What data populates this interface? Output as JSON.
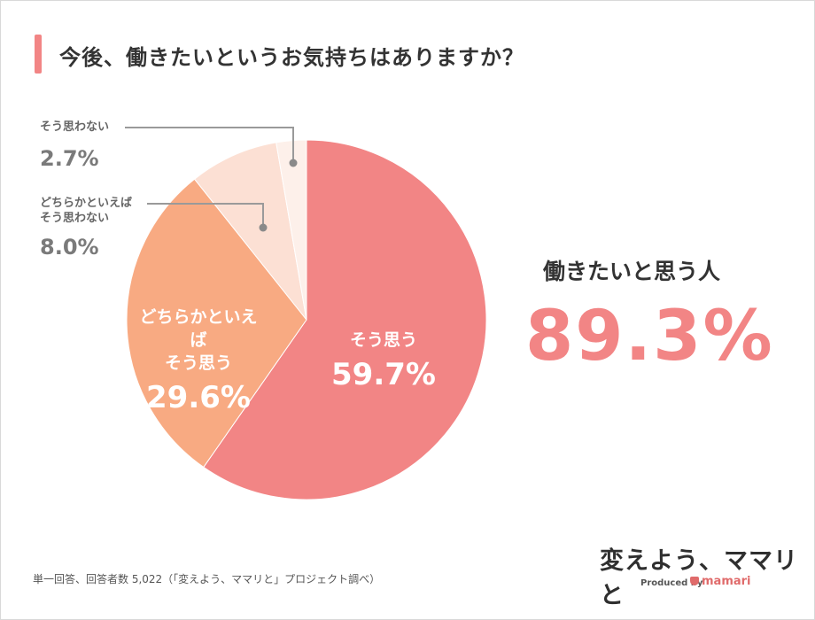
{
  "title": "今後、働きたいというお気持ちはありますか？",
  "chart_data": {
    "type": "pie",
    "slices": [
      {
        "label": "そう思う",
        "value": 59.7,
        "display": "59.7%",
        "color": "#f28585"
      },
      {
        "label": "どちらかといえば\nそう思う",
        "value": 29.6,
        "display": "29.6%",
        "color": "#f8aa82"
      },
      {
        "label": "どちらかといえば\nそう思わない",
        "value": 8.0,
        "display": "8.0%",
        "color": "#fce0d4"
      },
      {
        "label": "そう思わない",
        "value": 2.7,
        "display": "2.7%",
        "color": "#fdf0ea"
      }
    ]
  },
  "summary": {
    "label": "働きたいと思う人",
    "value": "89.3%"
  },
  "footnote": "単一回答、回答者数 5,022（「変えよう、ママリと」プロジェクト調べ）",
  "logo": {
    "main": "変えよう、ママリと",
    "produced_by": "Produced by",
    "brand": "mamari"
  }
}
